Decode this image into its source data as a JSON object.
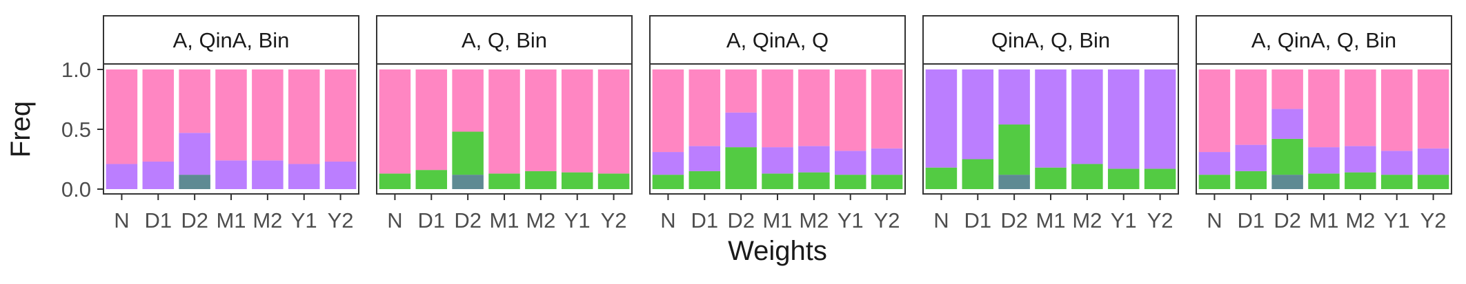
{
  "chart_data": {
    "type": "bar",
    "stacked": true,
    "xlabel": "Weights",
    "ylabel": "Freq",
    "ylim": [
      0,
      1
    ],
    "y_ticks": [
      "0.0",
      "0.5",
      "1.0"
    ],
    "y_tick_values": [
      0,
      0.5,
      1
    ],
    "categories": [
      "N",
      "D1",
      "D2",
      "M1",
      "M2",
      "Y1",
      "Y2"
    ],
    "series_colors": {
      "both": "#5E8A93",
      "green": "#53CB43",
      "purple": "#BB7EFF",
      "pink": "#FF86C2"
    },
    "panels": [
      {
        "title": "A, QinA, Bin",
        "segments": {
          "both": [
            0,
            0,
            0.12,
            0,
            0,
            0,
            0
          ],
          "green": [
            0,
            0,
            0,
            0,
            0,
            0,
            0
          ],
          "purple": [
            0.21,
            0.23,
            0.35,
            0.24,
            0.24,
            0.21,
            0.23
          ],
          "pink": [
            0.79,
            0.77,
            0.53,
            0.76,
            0.76,
            0.79,
            0.77
          ]
        }
      },
      {
        "title": "A, Q, Bin",
        "segments": {
          "both": [
            0,
            0,
            0.12,
            0,
            0,
            0,
            0
          ],
          "green": [
            0.13,
            0.16,
            0.36,
            0.13,
            0.15,
            0.14,
            0.13
          ],
          "purple": [
            0,
            0,
            0,
            0,
            0,
            0,
            0
          ],
          "pink": [
            0.87,
            0.84,
            0.52,
            0.87,
            0.85,
            0.86,
            0.87
          ]
        }
      },
      {
        "title": "A, QinA, Q",
        "segments": {
          "both": [
            0,
            0,
            0,
            0,
            0,
            0,
            0
          ],
          "green": [
            0.12,
            0.15,
            0.35,
            0.13,
            0.14,
            0.12,
            0.12
          ],
          "purple": [
            0.19,
            0.21,
            0.29,
            0.22,
            0.22,
            0.2,
            0.22
          ],
          "pink": [
            0.69,
            0.64,
            0.36,
            0.65,
            0.64,
            0.68,
            0.66
          ]
        }
      },
      {
        "title": "QinA, Q, Bin",
        "segments": {
          "both": [
            0,
            0,
            0.12,
            0,
            0,
            0,
            0
          ],
          "green": [
            0.18,
            0.25,
            0.42,
            0.18,
            0.21,
            0.17,
            0.17
          ],
          "purple": [
            0.82,
            0.75,
            0.46,
            0.82,
            0.79,
            0.83,
            0.83
          ],
          "pink": [
            0,
            0,
            0,
            0,
            0,
            0,
            0
          ]
        }
      },
      {
        "title": "A, QinA, Q, Bin",
        "segments": {
          "both": [
            0,
            0,
            0.12,
            0,
            0,
            0,
            0
          ],
          "green": [
            0.12,
            0.15,
            0.3,
            0.13,
            0.14,
            0.12,
            0.12
          ],
          "purple": [
            0.19,
            0.22,
            0.25,
            0.22,
            0.22,
            0.2,
            0.22
          ],
          "pink": [
            0.69,
            0.63,
            0.33,
            0.65,
            0.64,
            0.68,
            0.66
          ]
        }
      }
    ]
  }
}
